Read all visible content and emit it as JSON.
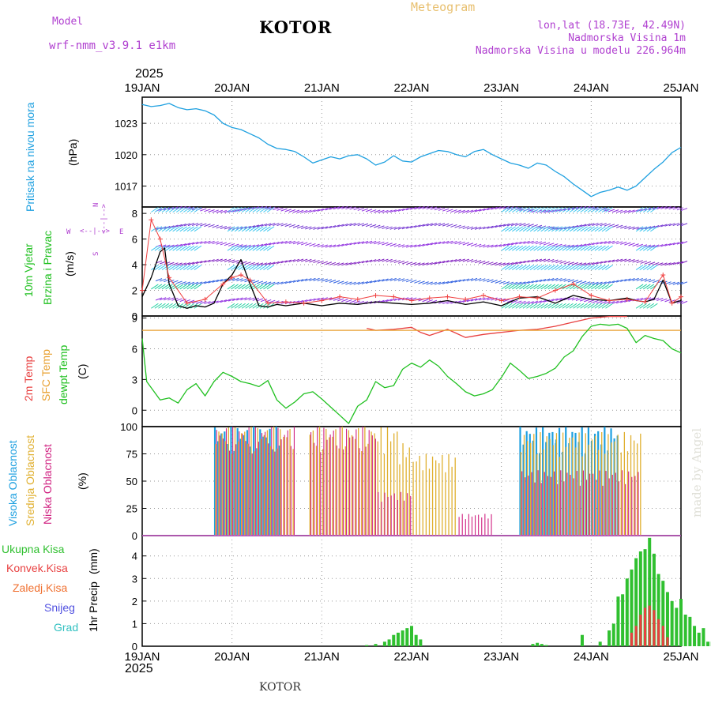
{
  "header": {
    "model_label": "Model",
    "model_name": "wrf-nmm_v3.9.1 e1km",
    "station": "KOTOR",
    "meteogram_label": "Meteogram",
    "lonlat": "lon,lat (18.73E, 42.49N)",
    "altitude": "Nadmorska Visina 1m",
    "model_altitude": "Nadmorska Visina u modelu 226.964m",
    "top_year": "2025",
    "bottom_year": "2025",
    "footer_station": "KOTOR",
    "watermark": "made by Angel"
  },
  "colors": {
    "pressure": "#1ea0e0",
    "temp2m": "#e84040",
    "sfc_temp": "#e8a030",
    "dewpt": "#20c020",
    "high_cloud": "#1ea0e0",
    "mid_cloud": "#e0b030",
    "low_cloud": "#d02080",
    "total_precip": "#30c030",
    "conv_precip": "#e84040",
    "wind_speed": "#000000",
    "gust": "#f04040"
  },
  "panel_labels": {
    "pressure": [
      "Pritisak na nivou mora",
      "(hPa)"
    ],
    "wind": [
      "10m Vjetar",
      "Brzina i Pravac",
      "(m/s)"
    ],
    "wind_rose": {
      "n": "N",
      "s": "S",
      "w": "W",
      "e": "E",
      "arrows": "<--|-->"
    },
    "temp": [
      "2m Temp",
      "SFC Temp",
      "dewpt Temp",
      "(C)"
    ],
    "cloud": [
      "Visoka Oblacnost",
      "Srednja Oblacnost",
      "Niska Oblacnost",
      "(%)"
    ],
    "precip_legend": [
      "Ukupna Kisa",
      "Konvek.Kisa",
      "Zaledj.Kisa",
      "Snijeg",
      "Grad"
    ],
    "precip_axis": [
      "1hr Precip",
      "(mm)"
    ]
  },
  "chart_data": [
    {
      "type": "line",
      "panel": "pressure",
      "x_ticks": [
        "19JAN",
        "20JAN",
        "21JAN",
        "22JAN",
        "23JAN",
        "24JAN",
        "25JAN"
      ],
      "ylim": [
        1015,
        1025.5
      ],
      "y_ticks": [
        "1017",
        "1020",
        "1023"
      ],
      "y_tick_values": [
        1017,
        1020,
        1023
      ],
      "series": [
        {
          "x": [
            0,
            0.1,
            0.2,
            0.3,
            0.4,
            0.5,
            0.6,
            0.7,
            0.8,
            0.9,
            1.0,
            1.1,
            1.2,
            1.3,
            1.4,
            1.5,
            1.6,
            1.7,
            1.8,
            1.9,
            2.0,
            2.1,
            2.2,
            2.3,
            2.4,
            2.5,
            2.6,
            2.7,
            2.8,
            2.9,
            3.0,
            3.1,
            3.2,
            3.3,
            3.4,
            3.5,
            3.6,
            3.7,
            3.8,
            3.9,
            4.0,
            4.1,
            4.2,
            4.3,
            4.4,
            4.5,
            4.6,
            4.7,
            4.8,
            4.9,
            5.0,
            5.1,
            5.2,
            5.3,
            5.4,
            5.5,
            5.6,
            5.7,
            5.8,
            5.9,
            6.0
          ],
          "values": [
            1024.8,
            1024.6,
            1024.7,
            1024.9,
            1024.5,
            1024.3,
            1024.4,
            1024.2,
            1023.8,
            1023.0,
            1022.6,
            1022.4,
            1022.0,
            1021.6,
            1021.0,
            1020.6,
            1020.5,
            1020.3,
            1019.8,
            1019.2,
            1019.5,
            1019.8,
            1019.6,
            1019.9,
            1020.0,
            1019.6,
            1019.0,
            1019.3,
            1019.9,
            1019.4,
            1019.3,
            1019.8,
            1020.1,
            1020.4,
            1020.3,
            1020.0,
            1019.8,
            1020.3,
            1020.5,
            1020.0,
            1019.6,
            1019.2,
            1019.0,
            1018.7,
            1019.2,
            1019.0,
            1018.4,
            1017.9,
            1017.2,
            1016.6,
            1016.0,
            1016.4,
            1016.6,
            1016.9,
            1016.6,
            1017.0,
            1017.8,
            1018.6,
            1019.3,
            1020.2,
            1020.7
          ]
        }
      ]
    },
    {
      "type": "line",
      "panel": "wind",
      "ylim": [
        0,
        8.5
      ],
      "y_ticks": [
        "0",
        "2",
        "4",
        "6",
        "8"
      ],
      "y_tick_values": [
        0,
        2,
        4,
        6,
        8
      ],
      "series": [
        {
          "role": "speed",
          "x": [
            0,
            0.1,
            0.2,
            0.25,
            0.3,
            0.4,
            0.5,
            0.6,
            0.7,
            0.8,
            0.9,
            1.0,
            1.1,
            1.2,
            1.3,
            1.4,
            1.5,
            1.6,
            1.7,
            1.8,
            2.0,
            2.2,
            2.4,
            2.6,
            2.8,
            3.0,
            3.2,
            3.4,
            3.6,
            3.8,
            4.0,
            4.2,
            4.4,
            4.6,
            4.8,
            5.0,
            5.2,
            5.4,
            5.5,
            5.6,
            5.7,
            5.8,
            5.9,
            6.0
          ],
          "values": [
            1.5,
            3.0,
            5.0,
            5.3,
            2.5,
            0.8,
            0.6,
            0.8,
            0.7,
            1.0,
            2.5,
            3.2,
            4.4,
            2.5,
            0.8,
            0.7,
            0.9,
            0.8,
            0.9,
            1.0,
            0.8,
            1.0,
            0.9,
            1.1,
            1.0,
            0.9,
            1.0,
            1.2,
            0.9,
            1.1,
            0.8,
            1.4,
            1.5,
            1.0,
            1.6,
            1.3,
            1.2,
            1.4,
            1.2,
            1.1,
            1.3,
            2.8,
            1.0,
            1.2
          ]
        },
        {
          "role": "gust",
          "x": [
            0,
            0.1,
            0.2,
            0.3,
            0.5,
            0.7,
            0.9,
            1.0,
            1.1,
            1.2,
            1.4,
            1.6,
            1.8,
            2.0,
            2.2,
            2.4,
            2.6,
            2.8,
            3.0,
            3.2,
            3.4,
            3.6,
            3.8,
            4.0,
            4.2,
            4.4,
            4.6,
            4.8,
            5.0,
            5.2,
            5.4,
            5.6,
            5.8,
            5.9,
            6.0
          ],
          "values": [
            2.0,
            7.5,
            6.0,
            3.0,
            1.0,
            1.3,
            2.5,
            3.0,
            3.2,
            2.8,
            1.0,
            1.1,
            1.0,
            1.2,
            1.5,
            1.3,
            1.6,
            1.5,
            1.2,
            1.4,
            1.5,
            1.3,
            1.6,
            1.2,
            1.5,
            1.4,
            2.0,
            2.5,
            1.6,
            1.2,
            1.3,
            1.1,
            3.2,
            1.0,
            1.5
          ]
        }
      ]
    },
    {
      "type": "line",
      "panel": "temperature",
      "ylim": [
        -1.6,
        9.2
      ],
      "y_ticks": [
        "0",
        "3",
        "6",
        "9"
      ],
      "y_tick_values": [
        0,
        3,
        6,
        9
      ],
      "series": [
        {
          "role": "2m Temp",
          "x": [
            2.5,
            2.6,
            2.8,
            3.0,
            3.1,
            3.2,
            3.3,
            3.4,
            3.5,
            3.6,
            3.8,
            4.0,
            4.2,
            4.4,
            4.6,
            4.8,
            5.0,
            5.2,
            5.4
          ],
          "values": [
            8.0,
            7.8,
            7.9,
            8.1,
            7.6,
            7.3,
            7.6,
            7.9,
            7.5,
            7.1,
            7.4,
            7.6,
            7.8,
            7.9,
            8.2,
            8.6,
            9.0,
            9.2,
            9.5
          ]
        },
        {
          "role": "SFC Temp",
          "x": [
            0,
            6.0
          ],
          "values": [
            7.8,
            7.8
          ]
        },
        {
          "role": "dewpt Temp",
          "x": [
            0,
            0.05,
            0.1,
            0.2,
            0.3,
            0.4,
            0.5,
            0.6,
            0.7,
            0.8,
            0.9,
            1.0,
            1.1,
            1.2,
            1.3,
            1.4,
            1.5,
            1.6,
            1.7,
            1.8,
            1.9,
            2.0,
            2.1,
            2.2,
            2.3,
            2.4,
            2.5,
            2.6,
            2.7,
            2.8,
            2.9,
            3.0,
            3.1,
            3.2,
            3.3,
            3.4,
            3.5,
            3.6,
            3.7,
            3.8,
            3.9,
            4.0,
            4.1,
            4.2,
            4.3,
            4.4,
            4.5,
            4.6,
            4.7,
            4.8,
            4.9,
            5.0,
            5.1,
            5.2,
            5.3,
            5.4,
            5.5,
            5.6,
            5.7,
            5.8,
            5.9,
            6.0
          ],
          "values": [
            7.0,
            2.8,
            2.2,
            1.0,
            1.2,
            0.7,
            2.0,
            2.6,
            1.4,
            2.8,
            3.7,
            3.3,
            2.8,
            2.6,
            2.3,
            2.9,
            1.0,
            0.2,
            0.8,
            1.6,
            1.8,
            1.1,
            0.3,
            -0.5,
            -1.3,
            0.4,
            1.0,
            2.8,
            2.2,
            2.4,
            4.0,
            4.6,
            4.2,
            4.9,
            4.3,
            3.3,
            2.6,
            1.8,
            1.4,
            1.6,
            2.0,
            3.2,
            4.6,
            3.9,
            3.1,
            3.3,
            3.6,
            4.1,
            5.2,
            5.8,
            7.2,
            8.2,
            8.4,
            8.3,
            8.4,
            8.0,
            6.6,
            7.3,
            7.0,
            6.8,
            6.0,
            5.6
          ]
        }
      ]
    },
    {
      "type": "bar",
      "panel": "cloud",
      "ylim": [
        0,
        100
      ],
      "y_ticks": [
        "0",
        "25",
        "50",
        "75",
        "100"
      ],
      "y_tick_values": [
        0,
        25,
        50,
        75,
        100
      ],
      "series": [
        {
          "name": "Visoka Oblacnost",
          "segments": [
            [
              0.8,
              1.55,
              100
            ],
            [
              4.2,
              4.6,
              100
            ],
            [
              4.6,
              5.3,
              100
            ]
          ]
        },
        {
          "name": "Srednja Oblacnost",
          "segments": [
            [
              0.8,
              1.7,
              100
            ],
            [
              1.85,
              2.85,
              100
            ],
            [
              2.85,
              3.0,
              85
            ],
            [
              3.0,
              3.5,
              75
            ],
            [
              4.2,
              5.55,
              95
            ]
          ]
        },
        {
          "name": "Niska Oblacnost",
          "segments": [
            [
              0.8,
              1.7,
              100
            ],
            [
              1.85,
              2.6,
              100
            ],
            [
              2.6,
              3.0,
              40
            ],
            [
              3.5,
              3.9,
              20
            ],
            [
              4.2,
              5.55,
              60
            ]
          ]
        }
      ]
    },
    {
      "type": "bar",
      "panel": "precipitation",
      "ylim": [
        0,
        4.9
      ],
      "y_ticks": [
        "0",
        "1",
        "2",
        "3",
        "4"
      ],
      "y_tick_values": [
        0,
        1,
        2,
        3,
        4
      ],
      "series": [
        {
          "name": "Ukupna Kisa",
          "x": [
            2.5,
            2.6,
            2.7,
            2.75,
            2.8,
            2.85,
            2.9,
            2.95,
            3.0,
            3.05,
            3.1,
            4.35,
            4.4,
            4.45,
            4.5,
            4.9,
            5.1,
            5.2,
            5.25,
            5.3,
            5.35,
            5.4,
            5.45,
            5.5,
            5.55,
            5.6,
            5.65,
            5.7,
            5.75,
            5.8,
            5.85,
            5.9,
            5.95,
            6.0,
            6.05,
            6.1,
            6.15,
            6.2,
            6.25,
            6.3,
            6.35,
            6.4
          ],
          "values": [
            0.05,
            0.1,
            0.2,
            0.3,
            0.5,
            0.6,
            0.7,
            0.8,
            0.9,
            0.5,
            0.3,
            0.1,
            0.15,
            0.1,
            0.05,
            0.5,
            0.2,
            0.7,
            1.0,
            2.2,
            2.3,
            3.0,
            3.4,
            3.9,
            4.2,
            4.3,
            4.8,
            4.1,
            3.2,
            2.9,
            2.4,
            2.0,
            1.7,
            2.1,
            1.4,
            1.3,
            0.9,
            0.6,
            0.8,
            0.2,
            0.2,
            0.2
          ]
        },
        {
          "name": "Konvek.Kisa",
          "x": [
            5.45,
            5.5,
            5.55,
            5.6,
            5.65,
            5.7,
            5.75,
            5.8,
            5.85
          ],
          "values": [
            0.6,
            0.9,
            1.4,
            1.7,
            1.8,
            1.6,
            1.2,
            0.9,
            0.4
          ]
        }
      ]
    }
  ]
}
